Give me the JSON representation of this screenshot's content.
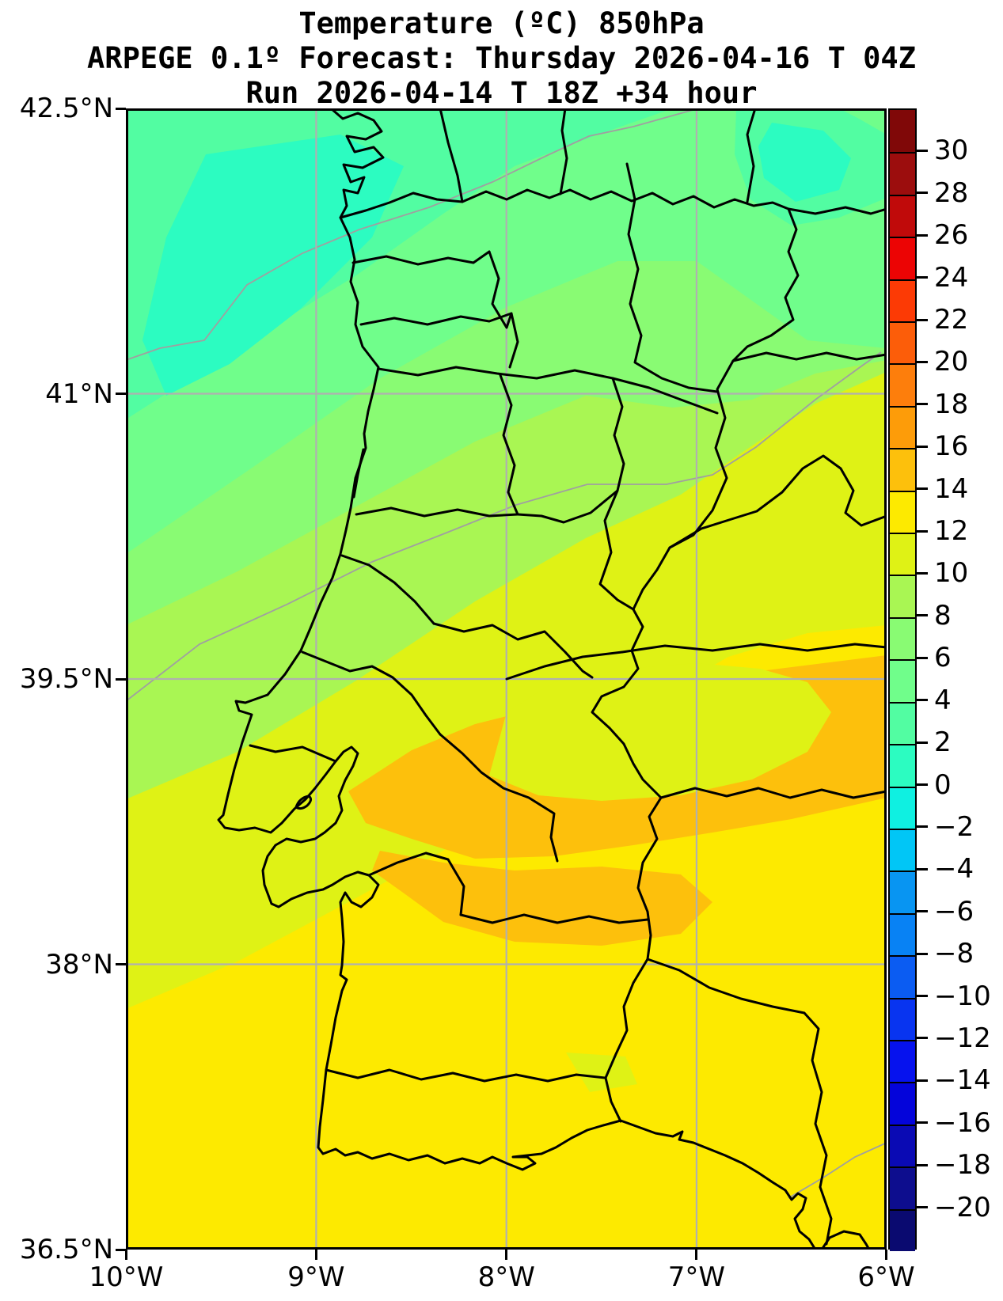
{
  "title": {
    "line1": "Temperature (ºC) 850hPa",
    "line2": "ARPEGE 0.1º Forecast: Thursday 2026-04-16 T 04Z",
    "line3": "Run 2026-04-14 T 18Z +34 hour"
  },
  "axes": {
    "lat_labels": [
      "42.5°N",
      "41°N",
      "39.5°N",
      "38°N",
      "36.5°N"
    ],
    "lon_labels": [
      "10°W",
      "9°W",
      "8°W",
      "7°W",
      "6°W"
    ]
  },
  "colorbar": {
    "tick_labels": [
      "30",
      "28",
      "26",
      "24",
      "22",
      "20",
      "18",
      "16",
      "14",
      "12",
      "10",
      "8",
      "6",
      "4",
      "2",
      "0",
      "−2",
      "−4",
      "−6",
      "−8",
      "−10",
      "−12",
      "−14",
      "−16",
      "−18",
      "−20"
    ],
    "band_colors": [
      "#800808",
      "#9c0d0d",
      "#c00a0a",
      "#ec0404",
      "#fc3a05",
      "#fc5d09",
      "#fd7e0c",
      "#fd9c09",
      "#fdc00c",
      "#fdea00",
      "#dff215",
      "#a9f653",
      "#89fb73",
      "#70fe8b",
      "#52fda2",
      "#2cfcc1",
      "#0ff0e1",
      "#01c6f6",
      "#0895f2",
      "#0882f4",
      "#0b5cf2",
      "#0834f0",
      "#0612ee",
      "#0404da",
      "#0a0ab4",
      "#0d0d8e",
      "#0a0a70"
    ]
  },
  "map": {
    "fill_colors": {
      "band_0_2": "#2cfcc1",
      "band_2_4": "#52fda2",
      "band_4_6": "#70fe8b",
      "band_6_8": "#89fb73",
      "band_8_10": "#a9f653",
      "band_10_12": "#dff215",
      "band_12_14": "#fdea00",
      "band_14_16": "#fdc00c"
    },
    "line_colors": {
      "admin": "#000000",
      "simplified_border": "#a0a0a0",
      "gridline": "#b0b0b0",
      "frame": "#000000"
    }
  },
  "chart_data": {
    "type": "heatmap",
    "title": "Temperature (ºC) 850hPa",
    "variable": "Temperature",
    "units": "ºC",
    "level": "850hPa",
    "model": "ARPEGE 0.1º",
    "valid_time": "Thursday 2026-04-16 T 04Z",
    "run_time": "2026-04-14 T 18Z",
    "lead_hours": "+34 hour",
    "extent": {
      "lon_min": "10°W",
      "lon_max": "6°W",
      "lat_min": "36.5°N",
      "lat_max": "42.5°N"
    },
    "colorbar_levels": [
      -20,
      -18,
      -16,
      -14,
      -12,
      -10,
      -8,
      -6,
      -4,
      -2,
      0,
      2,
      4,
      6,
      8,
      10,
      12,
      14,
      16,
      18,
      20,
      22,
      24,
      26,
      28,
      30
    ],
    "field_summary": "Approx 2-4ºC offshore NW and far NE pockets (0-2ºC), 4-10ºC across northern Portugal, 10-12ºC central, 12-14ºC in the south, with 14-16ºC patches in the Tejo valley and Alentejo"
  }
}
